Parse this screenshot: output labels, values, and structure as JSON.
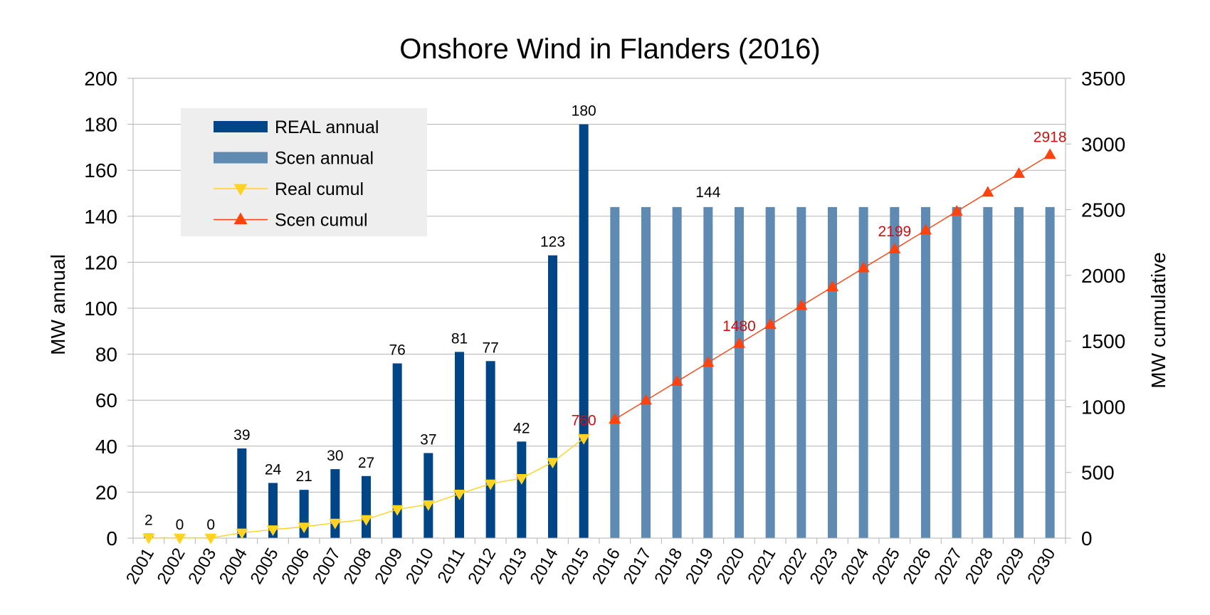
{
  "chart_data": {
    "type": "bar",
    "title": "Onshore Wind in Flanders (2016)",
    "ylabel": "MW annual",
    "y2label": "MW cumulative",
    "ylim": [
      0,
      200
    ],
    "y2lim": [
      0,
      3500
    ],
    "yticks": [
      0,
      20,
      40,
      60,
      80,
      100,
      120,
      140,
      160,
      180,
      200
    ],
    "y2ticks": [
      0,
      500,
      1000,
      1500,
      2000,
      2500,
      3000,
      3500
    ],
    "grid": true,
    "legend_position": "top-left",
    "categories": [
      "2001",
      "2002",
      "2003",
      "2004",
      "2005",
      "2006",
      "2007",
      "2008",
      "2009",
      "2010",
      "2011",
      "2012",
      "2013",
      "2014",
      "2015",
      "2016",
      "2017",
      "2018",
      "2019",
      "2020",
      "2021",
      "2022",
      "2023",
      "2024",
      "2025",
      "2026",
      "2027",
      "2028",
      "2029",
      "2030"
    ],
    "series": [
      {
        "name": "REAL annual",
        "kind": "bar",
        "axis": "left",
        "color": "#004586",
        "values": [
          2,
          0,
          0,
          39,
          24,
          21,
          30,
          27,
          76,
          37,
          81,
          77,
          42,
          123,
          180,
          null,
          null,
          null,
          null,
          null,
          null,
          null,
          null,
          null,
          null,
          null,
          null,
          null,
          null,
          null
        ],
        "labels": [
          "2",
          "0",
          "0",
          "39",
          "24",
          "21",
          "30",
          "27",
          "76",
          "37",
          "81",
          "77",
          "42",
          "123",
          "180"
        ]
      },
      {
        "name": "Scen annual",
        "kind": "bar",
        "axis": "left",
        "color": "#5f8ab2",
        "values": [
          null,
          null,
          null,
          null,
          null,
          null,
          null,
          null,
          null,
          null,
          null,
          null,
          null,
          null,
          null,
          144,
          144,
          144,
          144,
          144,
          144,
          144,
          144,
          144,
          144,
          144,
          144,
          144,
          144,
          144
        ],
        "labels": [
          {
            "index": 18,
            "text": "144"
          }
        ]
      },
      {
        "name": "Real cumul",
        "kind": "line",
        "axis": "right",
        "color": "#ffd320",
        "marker": "triangle-down",
        "values": [
          2,
          2,
          2,
          41,
          65,
          86,
          116,
          143,
          219,
          256,
          337,
          414,
          456,
          579,
          760,
          null,
          null,
          null,
          null,
          null,
          null,
          null,
          null,
          null,
          null,
          null,
          null,
          null,
          null,
          null
        ]
      },
      {
        "name": "Scen cumul",
        "kind": "line",
        "axis": "right",
        "color": "#ff420e",
        "marker": "triangle-up",
        "values": [
          null,
          null,
          null,
          null,
          null,
          null,
          null,
          null,
          null,
          null,
          null,
          null,
          null,
          null,
          null,
          904,
          1048,
          1192,
          1336,
          1480,
          1624,
          1768,
          1912,
          2056,
          2199,
          2343,
          2487,
          2631,
          2774,
          2918
        ]
      }
    ],
    "annotations": [
      {
        "index": 14,
        "value": 760,
        "text": "760",
        "color": "#cc1111"
      },
      {
        "index": 19,
        "value": 1480,
        "text": "1480",
        "color": "#cc1111"
      },
      {
        "index": 24,
        "value": 2199,
        "text": "2199",
        "color": "#cc1111"
      },
      {
        "index": 29,
        "value": 2918,
        "text": "2918",
        "color": "#cc1111"
      }
    ]
  }
}
